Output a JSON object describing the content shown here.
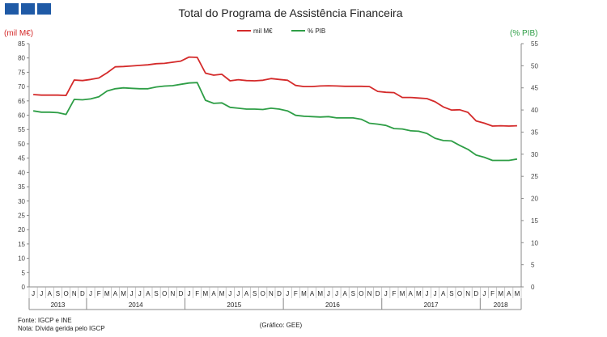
{
  "logo": {
    "squares": 3,
    "color": "#1f5aa6"
  },
  "chart_data": {
    "type": "line",
    "title": "Total do Programa de Assistência Financeira",
    "ylabel": "(mil M€)",
    "y2label": "(% PIB)",
    "ylim": [
      0,
      85
    ],
    "y2lim": [
      0,
      55
    ],
    "yticks": [
      "0",
      "5",
      "10",
      "15",
      "20",
      "25",
      "30",
      "35",
      "40",
      "45",
      "50",
      "55",
      "60",
      "65",
      "70",
      "75",
      "80",
      "85"
    ],
    "y2ticks": [
      "0",
      "5",
      "10",
      "15",
      "20",
      "25",
      "30",
      "35",
      "40",
      "45",
      "50",
      "55"
    ],
    "months": [
      "J",
      "J",
      "A",
      "S",
      "O",
      "N",
      "D",
      "J",
      "F",
      "M",
      "A",
      "M",
      "J",
      "J",
      "A",
      "S",
      "O",
      "N",
      "D",
      "J",
      "F",
      "M",
      "A",
      "M",
      "J",
      "J",
      "A",
      "S",
      "O",
      "N",
      "D",
      "J",
      "F",
      "M",
      "A",
      "M",
      "J",
      "J",
      "A",
      "S",
      "O",
      "N",
      "D",
      "J",
      "F",
      "M",
      "A",
      "M",
      "J",
      "J",
      "A",
      "S",
      "O",
      "N",
      "D",
      "J",
      "F",
      "M",
      "A",
      "M"
    ],
    "years": [
      {
        "label": "2013",
        "start": 0,
        "end": 7
      },
      {
        "label": "2014",
        "start": 7,
        "end": 19
      },
      {
        "label": "2015",
        "start": 19,
        "end": 31
      },
      {
        "label": "2016",
        "start": 31,
        "end": 43
      },
      {
        "label": "2017",
        "start": 43,
        "end": 55
      },
      {
        "label": "2018",
        "start": 55,
        "end": 60
      }
    ],
    "series": [
      {
        "name": "mil M€",
        "axis": "left",
        "color": "#d42a2a",
        "values": [
          67.2,
          67.0,
          67.0,
          67.0,
          66.9,
          72.3,
          72.1,
          72.5,
          73.0,
          74.8,
          76.9,
          77.0,
          77.2,
          77.4,
          77.6,
          78.0,
          78.1,
          78.5,
          78.9,
          80.3,
          80.2,
          74.7,
          74.0,
          74.3,
          72.0,
          72.4,
          72.1,
          72.0,
          72.2,
          72.8,
          72.5,
          72.2,
          70.4,
          70.0,
          70.0,
          70.2,
          70.3,
          70.2,
          70.1,
          70.1,
          70.1,
          70.0,
          68.3,
          68.0,
          67.9,
          66.2,
          66.2,
          66.0,
          65.8,
          64.7,
          62.9,
          61.8,
          61.9,
          61.0,
          58.0,
          57.2,
          56.2,
          56.3,
          56.2,
          56.3
        ]
      },
      {
        "name": "% PIB",
        "axis": "right",
        "color": "#2e9e46",
        "values": [
          39.8,
          39.5,
          39.5,
          39.4,
          39.0,
          42.4,
          42.3,
          42.5,
          43.0,
          44.3,
          44.8,
          45.0,
          44.9,
          44.8,
          44.8,
          45.2,
          45.4,
          45.5,
          45.8,
          46.1,
          46.2,
          42.2,
          41.5,
          41.6,
          40.6,
          40.4,
          40.2,
          40.2,
          40.1,
          40.4,
          40.2,
          39.8,
          38.8,
          38.6,
          38.5,
          38.4,
          38.5,
          38.2,
          38.2,
          38.2,
          37.9,
          37.0,
          36.8,
          36.5,
          35.8,
          35.7,
          35.3,
          35.2,
          34.7,
          33.6,
          33.1,
          33.0,
          32.0,
          31.1,
          29.8,
          29.3,
          28.6,
          28.6,
          28.6,
          28.9
        ]
      }
    ]
  },
  "notes": {
    "fonte": "Fonte: IGCP e INE",
    "nota": "Nota: Dívida gerida pelo IGCP",
    "credit": "(Gráfico: GEE)"
  }
}
